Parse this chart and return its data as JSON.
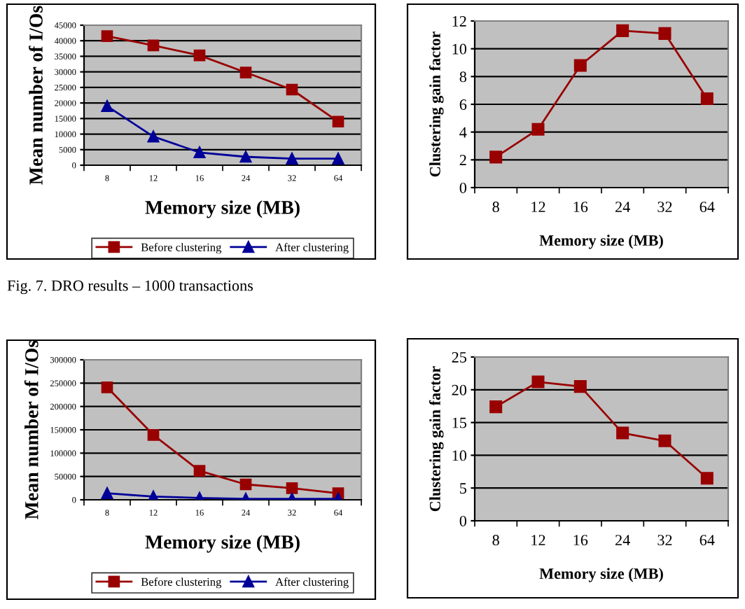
{
  "chart_data": [
    {
      "type": "line",
      "categories": [
        "8",
        "12",
        "16",
        "24",
        "32",
        "64"
      ],
      "xlabel": "Memory size (MB)",
      "ylabel": "Mean number of I/Os",
      "ylim": [
        0,
        45000
      ],
      "yticks": [
        0,
        5000,
        10000,
        15000,
        20000,
        25000,
        30000,
        35000,
        40000,
        45000
      ],
      "grid": "y",
      "legend": "bottom",
      "series": [
        {
          "name": "Before clustering",
          "color": "#990000",
          "marker": "square",
          "values": [
            41500,
            38500,
            35300,
            29800,
            24300,
            14000
          ]
        },
        {
          "name": "After clustering",
          "color": "#000099",
          "marker": "triangle",
          "values": [
            19000,
            9200,
            4100,
            2700,
            2100,
            2100
          ]
        }
      ]
    },
    {
      "type": "line",
      "categories": [
        "8",
        "12",
        "16",
        "24",
        "32",
        "64"
      ],
      "xlabel": "Memory size (MB)",
      "ylabel": "Clustering gain factor",
      "ylim": [
        0,
        12
      ],
      "yticks": [
        0,
        2,
        4,
        6,
        8,
        10,
        12
      ],
      "grid": "y",
      "marker": "square",
      "color": "#990000",
      "values": [
        2.2,
        4.2,
        8.8,
        11.3,
        11.1,
        6.4
      ],
      "annotations": [
        "Fig. 7. DRO results – 1000 transactions"
      ]
    },
    {
      "type": "line",
      "categories": [
        "8",
        "12",
        "16",
        "24",
        "32",
        "64"
      ],
      "xlabel": "Memory size (MB)",
      "ylabel": "Mean number of I/Os",
      "ylim": [
        0,
        300000
      ],
      "yticks": [
        0,
        50000,
        100000,
        150000,
        200000,
        250000,
        300000
      ],
      "grid": "y",
      "legend": "bottom",
      "series": [
        {
          "name": "Before clustering",
          "color": "#990000",
          "marker": "square",
          "values": [
            241000,
            139000,
            62000,
            33000,
            25000,
            14000
          ]
        },
        {
          "name": "After clustering",
          "color": "#000099",
          "marker": "triangle",
          "values": [
            14000,
            7000,
            4000,
            2000,
            2000,
            2000
          ]
        }
      ]
    },
    {
      "type": "line",
      "categories": [
        "8",
        "12",
        "16",
        "24",
        "32",
        "64"
      ],
      "xlabel": "Memory size (MB)",
      "ylabel": "Clustering gain factor",
      "ylim": [
        0,
        25
      ],
      "yticks": [
        0,
        5,
        10,
        15,
        20,
        25
      ],
      "grid": "y",
      "marker": "square",
      "color": "#990000",
      "values": [
        17.4,
        21.2,
        20.5,
        13.4,
        12.2,
        6.5
      ]
    }
  ]
}
